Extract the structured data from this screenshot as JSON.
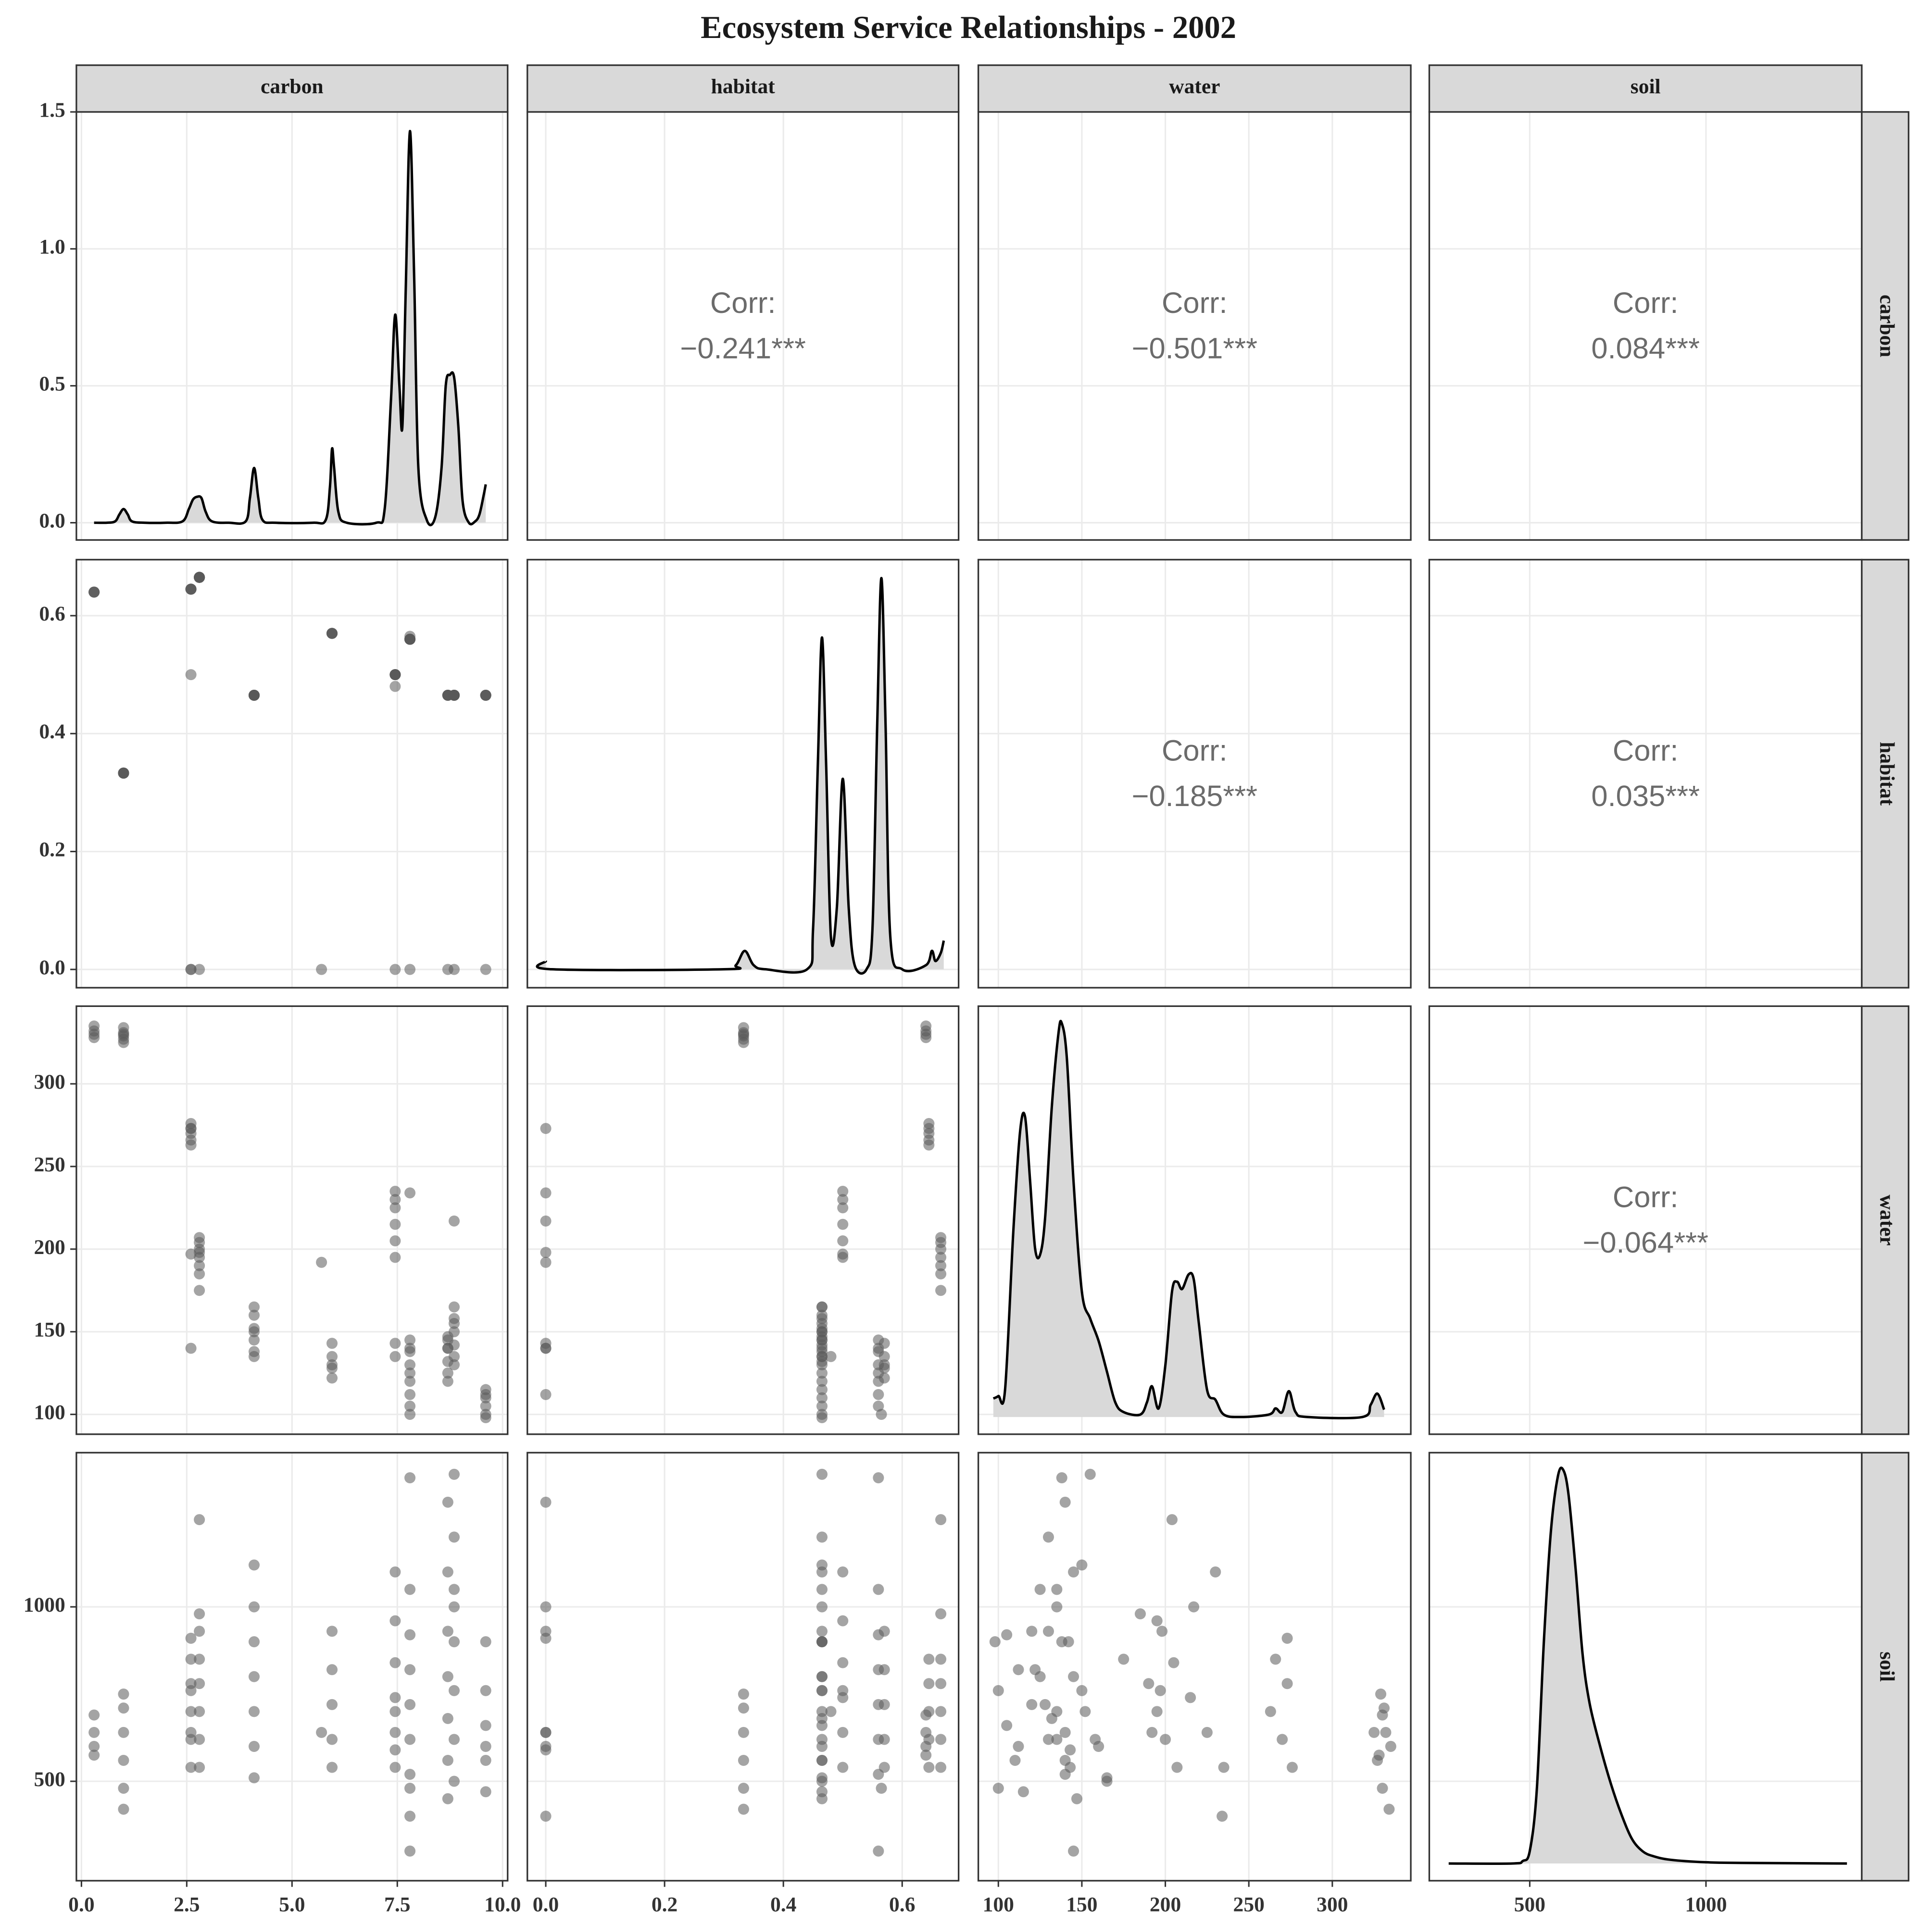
{
  "chart_data": {
    "type": "pairs",
    "title": "Ecosystem Service Relationships - 2002",
    "point_color": "#595959",
    "line_color": "#000000",
    "fill_color": "#d9d9d9",
    "grid": true,
    "variables": [
      {
        "name": "carbon",
        "lim": [
          -0.12,
          10.12
        ],
        "ticks": [
          {
            "value": 0,
            "label": "0.0"
          },
          2.5,
          {
            "value": 5,
            "label": "5.0"
          },
          7.5,
          {
            "value": 10,
            "label": "10.0"
          }
        ],
        "values": [
          0.3,
          0.3,
          0.3,
          0.3,
          1,
          1,
          1,
          1,
          1,
          1,
          2.6,
          2.6,
          2.6,
          2.6,
          2.6,
          2.6,
          2.6,
          2.6,
          2.8,
          2.8,
          2.8,
          2.8,
          2.8,
          2.8,
          2.8,
          2.8,
          4.1,
          4.1,
          4.1,
          4.1,
          4.1,
          4.1,
          4.1,
          5.95,
          5.95,
          5.95,
          5.95,
          5.95,
          5.7,
          7.45,
          7.45,
          7.45,
          7.45,
          7.45,
          7.45,
          7.45,
          7.45,
          7.8,
          7.8,
          7.8,
          7.8,
          7.8,
          7.8,
          7.8,
          7.8,
          7.8,
          7.8,
          8.7,
          8.7,
          8.7,
          8.7,
          8.7,
          8.7,
          8.7,
          8.85,
          8.85,
          8.85,
          8.85,
          8.85,
          8.85,
          8.85,
          8.85,
          9.6,
          9.6,
          9.6,
          9.6,
          9.6,
          9.6
        ],
        "density": {
          "x": [
            0.3,
            0.6,
            0.8,
            0.9,
            1.0,
            1.1,
            1.2,
            1.5,
            2.0,
            2.4,
            2.55,
            2.65,
            2.75,
            2.85,
            2.95,
            3.1,
            3.5,
            3.9,
            4.0,
            4.1,
            4.2,
            4.3,
            4.6,
            5.5,
            5.8,
            5.9,
            5.95,
            6.0,
            6.1,
            6.3,
            7.0,
            7.2,
            7.35,
            7.45,
            7.55,
            7.62,
            7.7,
            7.8,
            7.9,
            8.0,
            8.2,
            8.4,
            8.55,
            8.65,
            8.75,
            8.85,
            8.95,
            9.05,
            9.2,
            9.35,
            9.45,
            9.55,
            9.6
          ],
          "y": [
            0,
            0,
            0.005,
            0.03,
            0.05,
            0.03,
            0.005,
            0,
            0,
            0.005,
            0.05,
            0.085,
            0.095,
            0.09,
            0.04,
            0.005,
            0,
            0.005,
            0.09,
            0.2,
            0.09,
            0.01,
            0,
            0,
            0.01,
            0.13,
            0.27,
            0.2,
            0.04,
            0,
            0,
            0.05,
            0.45,
            0.76,
            0.5,
            0.35,
            0.85,
            1.43,
            0.9,
            0.2,
            0.01,
            0.02,
            0.2,
            0.5,
            0.54,
            0.53,
            0.35,
            0.08,
            0,
            0.005,
            0.03,
            0.1,
            0.14
          ],
          "ylim": [
            -0.063,
            1.5
          ],
          "yticks": [
            {
              "value": 0,
              "label": "0.0"
            },
            0.5,
            {
              "value": 1,
              "label": "1.0"
            },
            1.5
          ]
        }
      },
      {
        "name": "habitat",
        "lim": [
          -0.031,
          0.695
        ],
        "ticks": [
          {
            "value": 0,
            "label": "0.0"
          },
          0.2,
          0.4,
          0.6
        ],
        "values": [
          0.64,
          0.64,
          0.64,
          0.64,
          0.333,
          0.333,
          0.333,
          0.333,
          0.333,
          0.333,
          0.645,
          0.645,
          0.645,
          0.645,
          0.645,
          0,
          0.5,
          0,
          0.665,
          0.665,
          0.665,
          0.665,
          0.665,
          0.665,
          0.665,
          0,
          0.465,
          0.465,
          0.465,
          0.465,
          0.465,
          0.465,
          0.465,
          0.57,
          0.57,
          0.57,
          0.57,
          0.57,
          0,
          0.5,
          0.5,
          0.5,
          0.5,
          0.5,
          0.5,
          0,
          0.48,
          0.56,
          0.56,
          0.56,
          0.56,
          0.56,
          0.56,
          0.56,
          0.56,
          0,
          0.565,
          0.465,
          0.465,
          0.465,
          0.465,
          0.465,
          0.465,
          0,
          0.465,
          0.465,
          0.465,
          0.465,
          0.465,
          0.465,
          0.465,
          0,
          0.465,
          0.465,
          0.465,
          0.465,
          0.465,
          0
        ],
        "density": {
          "x": [
            0,
            0.01,
            0.3,
            0.32,
            0.335,
            0.35,
            0.37,
            0.44,
            0.45,
            0.458,
            0.465,
            0.472,
            0.48,
            0.49,
            0.5,
            0.51,
            0.52,
            0.54,
            0.55,
            0.558,
            0.565,
            0.572,
            0.58,
            0.6,
            0.64,
            0.65,
            0.656,
            0.665,
            0.67
          ],
          "y": [
            0.02,
            0,
            0,
            0.01,
            0.045,
            0.01,
            0,
            0,
            0.1,
            0.5,
            0.81,
            0.5,
            0.08,
            0.15,
            0.465,
            0.15,
            0.01,
            0,
            0.1,
            0.6,
            0.955,
            0.6,
            0.08,
            0,
            0.01,
            0.045,
            0.02,
            0.04,
            0.07
          ],
          "ylim": [
            -0.045,
            1.0
          ]
        }
      },
      {
        "name": "water",
        "lim": [
          88,
          347
        ],
        "ticks": [
          100,
          150,
          200,
          250,
          300
        ],
        "values": [
          335,
          330,
          328,
          332,
          334,
          330,
          327,
          325,
          331,
          329,
          276,
          270,
          263,
          273,
          266,
          273,
          197,
          140,
          207,
          200,
          195,
          190,
          175,
          185,
          204,
          198,
          165,
          160,
          152,
          145,
          138,
          135,
          150,
          143,
          135,
          128,
          122,
          130,
          192,
          235,
          225,
          215,
          205,
          195,
          230,
          143,
          135,
          145,
          140,
          130,
          120,
          112,
          105,
          125,
          138,
          234,
          100,
          147,
          140,
          132,
          125,
          120,
          145,
          140,
          165,
          158,
          150,
          142,
          135,
          130,
          155,
          217,
          115,
          110,
          105,
          100,
          98,
          112
        ],
        "density": {
          "x": [
            97,
            100,
            104,
            109,
            113,
            116,
            119,
            122,
            125,
            128,
            132,
            136,
            138,
            141,
            145,
            150,
            155,
            160,
            165,
            170,
            175,
            185,
            189,
            192,
            196,
            200,
            204,
            207,
            210,
            214,
            217,
            220,
            225,
            230,
            235,
            245,
            262,
            266,
            270,
            274,
            278,
            285,
            318,
            323,
            327,
            331
          ],
          "y": [
            0.15,
            0.17,
            0.22,
            1.52,
            2.32,
            2.44,
            1.92,
            1.37,
            1.32,
            1.62,
            2.52,
            3.12,
            3.2,
            2.92,
            1.92,
            1.02,
            0.8,
            0.62,
            0.37,
            0.12,
            0.04,
            0.02,
            0.12,
            0.25,
            0.07,
            0.42,
            1.02,
            1.1,
            1.04,
            1.16,
            1.12,
            0.77,
            0.22,
            0.14,
            0.02,
            0,
            0.02,
            0.07,
            0.04,
            0.21,
            0.04,
            0,
            0,
            0.1,
            0.19,
            0.06
          ],
          "ylim": [
            -0.14,
            3.34
          ]
        }
      },
      {
        "name": "soil",
        "lim": [
          215,
          1442
        ],
        "ticks": [
          500,
          1000
        ],
        "values": [
          600,
          690,
          575,
          640,
          420,
          480,
          560,
          640,
          710,
          750,
          540,
          620,
          700,
          780,
          850,
          910,
          760,
          640,
          540,
          620,
          700,
          780,
          850,
          980,
          1250,
          930,
          510,
          600,
          700,
          800,
          900,
          1000,
          1120,
          540,
          620,
          720,
          820,
          930,
          640,
          540,
          640,
          740,
          840,
          960,
          1100,
          590,
          700,
          300,
          520,
          620,
          720,
          820,
          920,
          1050,
          1370,
          400,
          480,
          450,
          560,
          680,
          800,
          930,
          1100,
          1300,
          500,
          620,
          760,
          900,
          1050,
          1200,
          1380,
          1000,
          470,
          560,
          660,
          760,
          900,
          600
        ],
        "density": {
          "x": [
            270,
            450,
            480,
            500,
            520,
            540,
            560,
            580,
            595,
            610,
            630,
            650,
            670,
            700,
            730,
            760,
            790,
            820,
            850,
            900,
            1000,
            1100,
            1400
          ],
          "y": [
            0,
            0,
            0.02,
            0.1,
            0.6,
            1.8,
            2.7,
            3.15,
            3.2,
            3.0,
            2.4,
            1.7,
            1.3,
            0.95,
            0.65,
            0.4,
            0.2,
            0.1,
            0.06,
            0.03,
            0.01,
            0.005,
            0
          ],
          "ylim": [
            -0.14,
            3.34
          ]
        }
      }
    ],
    "correlations": [
      {
        "heading": "Corr:",
        "value": "−0.241***"
      },
      {
        "heading": "Corr:",
        "value": "−0.501***"
      },
      {
        "heading": "Corr:",
        "value": "0.084***"
      },
      {
        "heading": "Corr:",
        "value": "−0.185***"
      },
      {
        "heading": "Corr:",
        "value": "0.035***"
      },
      {
        "heading": "Corr:",
        "value": "−0.064***"
      }
    ]
  }
}
